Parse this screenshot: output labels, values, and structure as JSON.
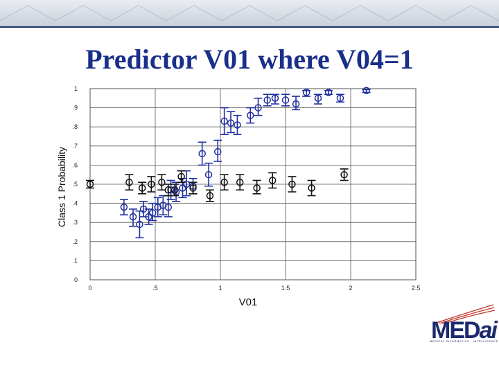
{
  "slide": {
    "title": "Predictor V01 where V04=1"
  },
  "logo": {
    "name_part1": "MED",
    "name_part2": "ai",
    "tagline": "MEDICAL INFORMATICS · INTELLIGENCE"
  },
  "colors": {
    "title": "#1a2f8a",
    "series_blue": "#1f2fa0",
    "series_black": "#111111"
  },
  "chart_data": {
    "type": "scatter",
    "title": "Predictor V01 where V04=1",
    "xlabel": "V01",
    "ylabel": "Class 1 Probability",
    "xlim": [
      0,
      2.5
    ],
    "ylim": [
      0,
      1
    ],
    "x_ticks": [
      0,
      0.5,
      1,
      1.5,
      2,
      2.5
    ],
    "x_tick_labels": [
      "0",
      ".5",
      "1",
      "1.5",
      "2",
      "2.5"
    ],
    "y_ticks": [
      0,
      0.1,
      0.2,
      0.3,
      0.4,
      0.5,
      0.6,
      0.7,
      0.8,
      0.9,
      1
    ],
    "y_tick_labels": [
      "0",
      ".1",
      ".2",
      ".3",
      ".4",
      ".5",
      ".6",
      ".7",
      ".8",
      ".9",
      "1"
    ],
    "grid": true,
    "error_bars": true,
    "series": [
      {
        "color": "#1f2fa0",
        "points": [
          {
            "x": 0.26,
            "y": 0.38,
            "lo": 0.34,
            "hi": 0.42
          },
          {
            "x": 0.33,
            "y": 0.33,
            "lo": 0.28,
            "hi": 0.37
          },
          {
            "x": 0.38,
            "y": 0.29,
            "lo": 0.22,
            "hi": 0.36
          },
          {
            "x": 0.41,
            "y": 0.37,
            "lo": 0.33,
            "hi": 0.41
          },
          {
            "x": 0.45,
            "y": 0.33,
            "lo": 0.29,
            "hi": 0.37
          },
          {
            "x": 0.48,
            "y": 0.35,
            "lo": 0.31,
            "hi": 0.4
          },
          {
            "x": 0.52,
            "y": 0.38,
            "lo": 0.33,
            "hi": 0.43
          },
          {
            "x": 0.56,
            "y": 0.39,
            "lo": 0.34,
            "hi": 0.44
          },
          {
            "x": 0.6,
            "y": 0.38,
            "lo": 0.33,
            "hi": 0.44
          },
          {
            "x": 0.62,
            "y": 0.47,
            "lo": 0.42,
            "hi": 0.52
          },
          {
            "x": 0.66,
            "y": 0.46,
            "lo": 0.41,
            "hi": 0.51
          },
          {
            "x": 0.71,
            "y": 0.48,
            "lo": 0.43,
            "hi": 0.53
          },
          {
            "x": 0.74,
            "y": 0.5,
            "lo": 0.44,
            "hi": 0.57
          },
          {
            "x": 0.79,
            "y": 0.49,
            "lo": 0.45,
            "hi": 0.53
          },
          {
            "x": 0.86,
            "y": 0.66,
            "lo": 0.6,
            "hi": 0.72
          },
          {
            "x": 0.91,
            "y": 0.55,
            "lo": 0.49,
            "hi": 0.61
          },
          {
            "x": 0.98,
            "y": 0.67,
            "lo": 0.62,
            "hi": 0.73
          },
          {
            "x": 1.03,
            "y": 0.83,
            "lo": 0.76,
            "hi": 0.9
          },
          {
            "x": 1.08,
            "y": 0.82,
            "lo": 0.77,
            "hi": 0.88
          },
          {
            "x": 1.13,
            "y": 0.81,
            "lo": 0.76,
            "hi": 0.86
          },
          {
            "x": 1.23,
            "y": 0.86,
            "lo": 0.82,
            "hi": 0.9
          },
          {
            "x": 1.29,
            "y": 0.9,
            "lo": 0.86,
            "hi": 0.95
          },
          {
            "x": 1.36,
            "y": 0.94,
            "lo": 0.91,
            "hi": 0.97
          },
          {
            "x": 1.42,
            "y": 0.95,
            "lo": 0.92,
            "hi": 0.97
          },
          {
            "x": 1.5,
            "y": 0.94,
            "lo": 0.91,
            "hi": 0.97
          },
          {
            "x": 1.58,
            "y": 0.92,
            "lo": 0.89,
            "hi": 0.96
          },
          {
            "x": 1.66,
            "y": 0.98,
            "lo": 0.96,
            "hi": 0.99
          },
          {
            "x": 1.75,
            "y": 0.95,
            "lo": 0.92,
            "hi": 0.97
          },
          {
            "x": 1.83,
            "y": 0.98,
            "lo": 0.97,
            "hi": 0.99
          },
          {
            "x": 1.92,
            "y": 0.95,
            "lo": 0.93,
            "hi": 0.97
          },
          {
            "x": 2.12,
            "y": 0.99,
            "lo": 0.98,
            "hi": 0.995
          }
        ]
      },
      {
        "color": "#111111",
        "points": [
          {
            "x": 0.0,
            "y": 0.5,
            "lo": 0.48,
            "hi": 0.52
          },
          {
            "x": 0.3,
            "y": 0.51,
            "lo": 0.47,
            "hi": 0.55
          },
          {
            "x": 0.4,
            "y": 0.48,
            "lo": 0.45,
            "hi": 0.51
          },
          {
            "x": 0.47,
            "y": 0.5,
            "lo": 0.46,
            "hi": 0.54
          },
          {
            "x": 0.55,
            "y": 0.51,
            "lo": 0.47,
            "hi": 0.55
          },
          {
            "x": 0.6,
            "y": 0.47,
            "lo": 0.44,
            "hi": 0.5
          },
          {
            "x": 0.65,
            "y": 0.47,
            "lo": 0.44,
            "hi": 0.5
          },
          {
            "x": 0.7,
            "y": 0.54,
            "lo": 0.51,
            "hi": 0.57
          },
          {
            "x": 0.79,
            "y": 0.48,
            "lo": 0.45,
            "hi": 0.51
          },
          {
            "x": 0.92,
            "y": 0.44,
            "lo": 0.41,
            "hi": 0.47
          },
          {
            "x": 1.03,
            "y": 0.51,
            "lo": 0.47,
            "hi": 0.55
          },
          {
            "x": 1.15,
            "y": 0.51,
            "lo": 0.47,
            "hi": 0.55
          },
          {
            "x": 1.28,
            "y": 0.48,
            "lo": 0.45,
            "hi": 0.52
          },
          {
            "x": 1.4,
            "y": 0.52,
            "lo": 0.48,
            "hi": 0.56
          },
          {
            "x": 1.55,
            "y": 0.5,
            "lo": 0.46,
            "hi": 0.54
          },
          {
            "x": 1.7,
            "y": 0.48,
            "lo": 0.44,
            "hi": 0.52
          },
          {
            "x": 1.95,
            "y": 0.55,
            "lo": 0.52,
            "hi": 0.58
          }
        ]
      }
    ]
  }
}
